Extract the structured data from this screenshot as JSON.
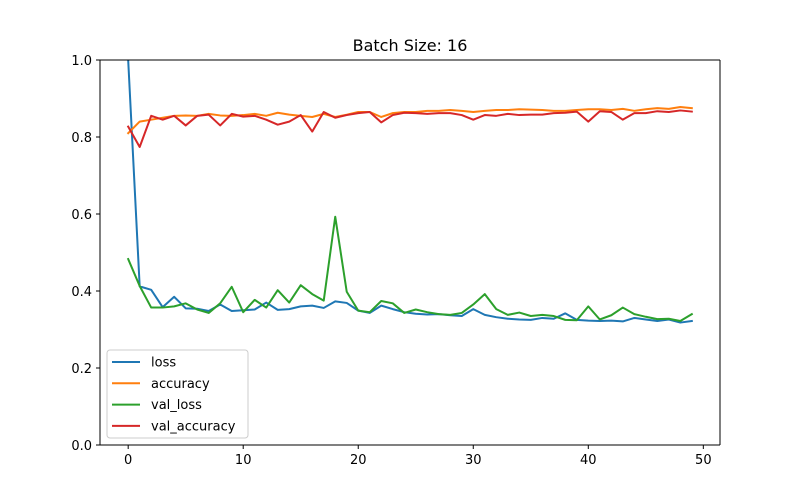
{
  "chart_data": {
    "type": "line",
    "title": "Batch Size: 16",
    "xlabel": "",
    "ylabel": "",
    "xlim": [
      -2.45,
      51.45
    ],
    "ylim": [
      0,
      1
    ],
    "xticks": [
      0,
      10,
      20,
      30,
      40,
      50
    ],
    "yticks": [
      0.0,
      0.2,
      0.4,
      0.6,
      0.8,
      1.0
    ],
    "xtick_labels": [
      "0",
      "10",
      "20",
      "30",
      "40",
      "50"
    ],
    "ytick_labels": [
      "0.0",
      "0.2",
      "0.4",
      "0.6",
      "0.8",
      "1.0"
    ],
    "grid": false,
    "legend_position": "lower-left",
    "x": [
      0,
      1,
      2,
      3,
      4,
      5,
      6,
      7,
      8,
      9,
      10,
      11,
      12,
      13,
      14,
      15,
      16,
      17,
      18,
      19,
      20,
      21,
      22,
      23,
      24,
      25,
      26,
      27,
      28,
      29,
      30,
      31,
      32,
      33,
      34,
      35,
      36,
      37,
      38,
      39,
      40,
      41,
      42,
      43,
      44,
      45,
      46,
      47,
      48,
      49
    ],
    "series": [
      {
        "name": "loss",
        "color": "#1f77b4",
        "values": [
          1.0,
          0.412,
          0.403,
          0.358,
          0.385,
          0.355,
          0.354,
          0.348,
          0.365,
          0.348,
          0.35,
          0.352,
          0.37,
          0.351,
          0.353,
          0.36,
          0.362,
          0.356,
          0.373,
          0.369,
          0.349,
          0.343,
          0.362,
          0.353,
          0.345,
          0.341,
          0.339,
          0.34,
          0.337,
          0.335,
          0.353,
          0.338,
          0.332,
          0.328,
          0.326,
          0.325,
          0.33,
          0.328,
          0.342,
          0.325,
          0.323,
          0.322,
          0.323,
          0.321,
          0.33,
          0.326,
          0.322,
          0.326,
          0.318,
          0.322
        ]
      },
      {
        "name": "accuracy",
        "color": "#ff7f0e",
        "values": [
          0.81,
          0.84,
          0.845,
          0.85,
          0.855,
          0.856,
          0.855,
          0.86,
          0.856,
          0.855,
          0.857,
          0.86,
          0.855,
          0.863,
          0.858,
          0.855,
          0.852,
          0.86,
          0.852,
          0.858,
          0.865,
          0.865,
          0.852,
          0.862,
          0.865,
          0.865,
          0.868,
          0.868,
          0.87,
          0.868,
          0.865,
          0.868,
          0.87,
          0.87,
          0.872,
          0.871,
          0.87,
          0.868,
          0.868,
          0.87,
          0.872,
          0.872,
          0.87,
          0.873,
          0.868,
          0.872,
          0.875,
          0.873,
          0.878,
          0.875
        ]
      },
      {
        "name": "val_loss",
        "color": "#2ca02c",
        "values": [
          0.483,
          0.413,
          0.357,
          0.357,
          0.36,
          0.368,
          0.352,
          0.343,
          0.368,
          0.411,
          0.345,
          0.377,
          0.357,
          0.402,
          0.37,
          0.415,
          0.392,
          0.375,
          0.593,
          0.398,
          0.349,
          0.345,
          0.374,
          0.368,
          0.343,
          0.352,
          0.345,
          0.34,
          0.338,
          0.343,
          0.365,
          0.392,
          0.353,
          0.338,
          0.344,
          0.335,
          0.338,
          0.335,
          0.325,
          0.324,
          0.36,
          0.326,
          0.337,
          0.357,
          0.34,
          0.333,
          0.327,
          0.328,
          0.322,
          0.34
        ]
      },
      {
        "name": "val_accuracy",
        "color": "#d62728",
        "values": [
          0.827,
          0.774,
          0.855,
          0.845,
          0.855,
          0.83,
          0.855,
          0.858,
          0.83,
          0.86,
          0.853,
          0.855,
          0.845,
          0.832,
          0.84,
          0.857,
          0.814,
          0.865,
          0.85,
          0.857,
          0.862,
          0.865,
          0.838,
          0.857,
          0.863,
          0.862,
          0.86,
          0.862,
          0.862,
          0.857,
          0.845,
          0.857,
          0.855,
          0.86,
          0.857,
          0.858,
          0.858,
          0.862,
          0.863,
          0.866,
          0.84,
          0.867,
          0.865,
          0.845,
          0.862,
          0.862,
          0.867,
          0.865,
          0.869,
          0.866
        ]
      }
    ]
  }
}
